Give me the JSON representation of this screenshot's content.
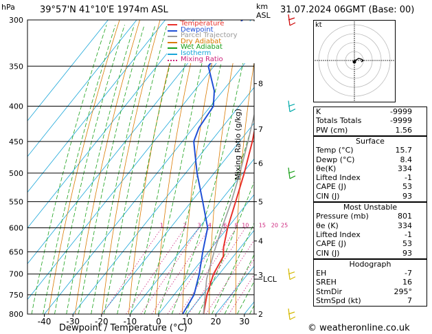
{
  "header": {
    "pressure_unit": "hPa",
    "location": "39°57'N  41°10'E  1974m  ASL",
    "height_unit": "km",
    "height_ref": "ASL",
    "datetime": "31.07.2024  06GMT  (Base: 00)"
  },
  "chart_data": {
    "type": "skew-t",
    "xlabel": "Dewpoint / Temperature (°C)",
    "ylabel_left": "hPa",
    "ylabel_right": "Mixing Ratio (g/kg)",
    "pressure_ticks": [
      300,
      350,
      400,
      450,
      500,
      550,
      600,
      650,
      700,
      750,
      800
    ],
    "temperature_ticks": [
      -40,
      -30,
      -20,
      -10,
      0,
      10,
      20,
      30
    ],
    "xlim": [
      -45,
      33
    ],
    "ylim": [
      800,
      300
    ],
    "km_ticks": [
      {
        "label": "8",
        "p": 371
      },
      {
        "label": "7",
        "p": 432
      },
      {
        "label": "6",
        "p": 484
      },
      {
        "label": "5",
        "p": 550
      },
      {
        "label": "4",
        "p": 627
      },
      {
        "label": "3",
        "p": 702
      },
      {
        "label": "2",
        "p": 800
      }
    ],
    "lcl": {
      "label": "LCL",
      "p": 712
    },
    "mixing_ratio_labels": [
      "1",
      "2",
      "3",
      "4",
      "6",
      "8",
      "10",
      "15",
      "20",
      "25"
    ],
    "legend": [
      {
        "name": "Temperature",
        "color": "#e8302a"
      },
      {
        "name": "Dewpoint",
        "color": "#1f4fd6"
      },
      {
        "name": "Parcel Trajectory",
        "color": "#9a9a9a"
      },
      {
        "name": "Dry Adiabat",
        "color": "#d97a00"
      },
      {
        "name": "Wet Adiabat",
        "color": "#18a018"
      },
      {
        "name": "Isotherm",
        "color": "#17a5d8"
      },
      {
        "name": "Mixing Ratio",
        "color": "#cc1f7a"
      }
    ],
    "legend_position": "top-left",
    "series": [
      {
        "name": "Temperature",
        "points": [
          [
            800,
            15.7
          ],
          [
            750,
            11.5
          ],
          [
            700,
            8
          ],
          [
            660,
            6.5
          ],
          [
            640,
            4
          ],
          [
            600,
            0
          ],
          [
            550,
            -4.5
          ],
          [
            500,
            -9.5
          ],
          [
            450,
            -15.5
          ],
          [
            400,
            -23
          ],
          [
            350,
            -30
          ],
          [
            300,
            -38
          ]
        ]
      },
      {
        "name": "Dewpoint",
        "points": [
          [
            800,
            8.4
          ],
          [
            750,
            7
          ],
          [
            700,
            3
          ],
          [
            650,
            -2
          ],
          [
            600,
            -7
          ],
          [
            550,
            -16
          ],
          [
            500,
            -26
          ],
          [
            450,
            -36
          ],
          [
            430,
            -38
          ],
          [
            400,
            -39
          ],
          [
            380,
            -43
          ],
          [
            350,
            -52
          ],
          [
            330,
            -52
          ],
          [
            300,
            -53
          ]
        ]
      },
      {
        "name": "Parcel Trajectory",
        "points": [
          [
            800,
            15.7
          ],
          [
            712,
            7
          ],
          [
            650,
            2
          ],
          [
            600,
            -2
          ],
          [
            550,
            -6
          ],
          [
            500,
            -11
          ],
          [
            450,
            -17
          ],
          [
            400,
            -24
          ],
          [
            350,
            -32
          ],
          [
            300,
            -41
          ]
        ]
      }
    ],
    "wind_barbs": [
      {
        "p": 300,
        "color": "#cc0000"
      },
      {
        "p": 400,
        "color": "#00aaaa"
      },
      {
        "p": 500,
        "color": "#18a018"
      },
      {
        "p": 700,
        "color": "#d4b800"
      },
      {
        "p": 800,
        "color": "#d4b800"
      }
    ]
  },
  "hodograph": {
    "label": "kt",
    "rings_kt": [
      10,
      20,
      30,
      40
    ]
  },
  "indices": [
    {
      "label": "K",
      "value": "-9999"
    },
    {
      "label": "Totals Totals",
      "value": "-9999"
    },
    {
      "label": "PW (cm)",
      "value": "1.56"
    }
  ],
  "surface": {
    "title": "Surface",
    "rows": [
      {
        "label": "Temp (°C)",
        "value": "15.7"
      },
      {
        "label": "Dewp (°C)",
        "value": "8.4"
      },
      {
        "label": "θe(K)",
        "value": "334"
      },
      {
        "label": "Lifted Index",
        "value": "-1"
      },
      {
        "label": "CAPE (J)",
        "value": "53"
      },
      {
        "label": "CIN (J)",
        "value": "93"
      }
    ]
  },
  "most_unstable": {
    "title": "Most Unstable",
    "rows": [
      {
        "label": "Pressure (mb)",
        "value": "801"
      },
      {
        "label": "θe (K)",
        "value": "334"
      },
      {
        "label": "Lifted Index",
        "value": "-1"
      },
      {
        "label": "CAPE (J)",
        "value": "53"
      },
      {
        "label": "CIN (J)",
        "value": "93"
      }
    ]
  },
  "hodograph_table": {
    "title": "Hodograph",
    "rows": [
      {
        "label": "EH",
        "value": "-7"
      },
      {
        "label": "SREH",
        "value": "16"
      },
      {
        "label": "StmDir",
        "value": "295°"
      },
      {
        "label": "StmSpd (kt)",
        "value": "7"
      }
    ]
  },
  "footer": {
    "credit": "© weatheronline.co.uk"
  }
}
